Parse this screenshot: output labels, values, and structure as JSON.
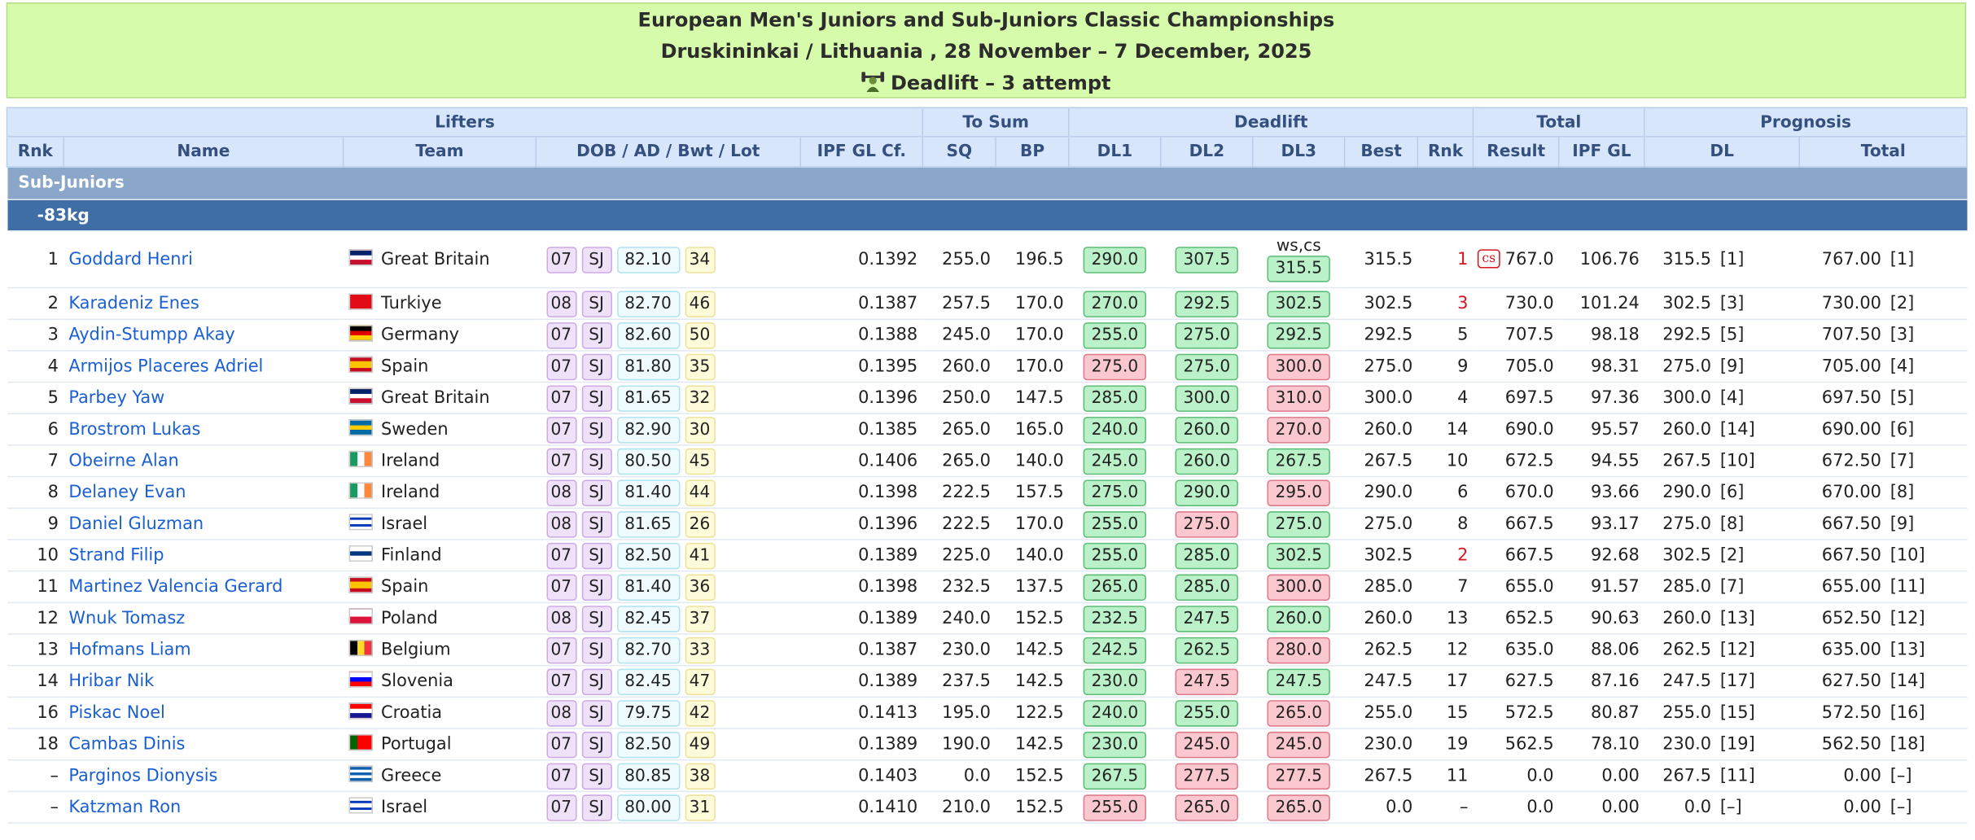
{
  "header": {
    "title": "European Men's Juniors and Sub-Juniors Classic Championships",
    "subtitle": "Druskininkai / Lithuania , 28 November – 7 December, 2025",
    "event": "Deadlift – 3 attempt"
  },
  "groups": [
    "Lifters",
    "To Sum",
    "Deadlift",
    "Total",
    "Prognosis"
  ],
  "columns": [
    "Rnk",
    "Name",
    "Team",
    "DOB / AD / Bwt / Lot",
    "IPF GL Cf.",
    "SQ",
    "BP",
    "DL1",
    "DL2",
    "DL3",
    "Best",
    "Rnk",
    "Result",
    "IPF GL",
    "DL",
    "Total"
  ],
  "section": "Sub-Juniors",
  "weight_class": "-83kg",
  "rows": [
    {
      "rank": "1",
      "name": "Goddard Henri",
      "team": "Great Britain",
      "dob": "07",
      "div": "SJ",
      "bwt": "82.10",
      "lot": "34",
      "coef": "0.1392",
      "sq": "255.0",
      "bp": "196.5",
      "dl": [
        {
          "v": "290.0",
          "ok": true
        },
        {
          "v": "307.5",
          "ok": true
        },
        {
          "v": "315.5",
          "ok": true
        }
      ],
      "dl3_note": "ws,cs",
      "best": "315.5",
      "dl_rank": "1",
      "top": true,
      "badge": "cs",
      "result": "767.0",
      "gl": "106.76",
      "p_dl": "315.5",
      "p_dl_rank": "[1]",
      "p_total": "767.00",
      "p_total_rank": "[1]"
    },
    {
      "rank": "2",
      "name": "Karadeniz Enes",
      "team": "Turkiye",
      "dob": "08",
      "div": "SJ",
      "bwt": "82.70",
      "lot": "46",
      "coef": "0.1387",
      "sq": "257.5",
      "bp": "170.0",
      "dl": [
        {
          "v": "270.0",
          "ok": true
        },
        {
          "v": "292.5",
          "ok": true
        },
        {
          "v": "302.5",
          "ok": true
        }
      ],
      "best": "302.5",
      "dl_rank": "3",
      "top": true,
      "result": "730.0",
      "gl": "101.24",
      "p_dl": "302.5",
      "p_dl_rank": "[3]",
      "p_total": "730.00",
      "p_total_rank": "[2]"
    },
    {
      "rank": "3",
      "name": "Aydin-Stumpp Akay",
      "team": "Germany",
      "dob": "07",
      "div": "SJ",
      "bwt": "82.60",
      "lot": "50",
      "coef": "0.1388",
      "sq": "245.0",
      "bp": "170.0",
      "dl": [
        {
          "v": "255.0",
          "ok": true
        },
        {
          "v": "275.0",
          "ok": true
        },
        {
          "v": "292.5",
          "ok": true
        }
      ],
      "best": "292.5",
      "dl_rank": "5",
      "result": "707.5",
      "gl": "98.18",
      "p_dl": "292.5",
      "p_dl_rank": "[5]",
      "p_total": "707.50",
      "p_total_rank": "[3]"
    },
    {
      "rank": "4",
      "name": "Armijos Placeres Adriel",
      "team": "Spain",
      "dob": "07",
      "div": "SJ",
      "bwt": "81.80",
      "lot": "35",
      "coef": "0.1395",
      "sq": "260.0",
      "bp": "170.0",
      "dl": [
        {
          "v": "275.0",
          "ok": false
        },
        {
          "v": "275.0",
          "ok": true
        },
        {
          "v": "300.0",
          "ok": false
        }
      ],
      "best": "275.0",
      "dl_rank": "9",
      "result": "705.0",
      "gl": "98.31",
      "p_dl": "275.0",
      "p_dl_rank": "[9]",
      "p_total": "705.00",
      "p_total_rank": "[4]"
    },
    {
      "rank": "5",
      "name": "Parbey Yaw",
      "team": "Great Britain",
      "dob": "07",
      "div": "SJ",
      "bwt": "81.65",
      "lot": "32",
      "coef": "0.1396",
      "sq": "250.0",
      "bp": "147.5",
      "dl": [
        {
          "v": "285.0",
          "ok": true
        },
        {
          "v": "300.0",
          "ok": true
        },
        {
          "v": "310.0",
          "ok": false
        }
      ],
      "best": "300.0",
      "dl_rank": "4",
      "result": "697.5",
      "gl": "97.36",
      "p_dl": "300.0",
      "p_dl_rank": "[4]",
      "p_total": "697.50",
      "p_total_rank": "[5]"
    },
    {
      "rank": "6",
      "name": "Brostrom Lukas",
      "team": "Sweden",
      "dob": "07",
      "div": "SJ",
      "bwt": "82.90",
      "lot": "30",
      "coef": "0.1385",
      "sq": "265.0",
      "bp": "165.0",
      "dl": [
        {
          "v": "240.0",
          "ok": true
        },
        {
          "v": "260.0",
          "ok": true
        },
        {
          "v": "270.0",
          "ok": false
        }
      ],
      "best": "260.0",
      "dl_rank": "14",
      "result": "690.0",
      "gl": "95.57",
      "p_dl": "260.0",
      "p_dl_rank": "[14]",
      "p_total": "690.00",
      "p_total_rank": "[6]"
    },
    {
      "rank": "7",
      "name": "Obeirne Alan",
      "team": "Ireland",
      "dob": "07",
      "div": "SJ",
      "bwt": "80.50",
      "lot": "45",
      "coef": "0.1406",
      "sq": "265.0",
      "bp": "140.0",
      "dl": [
        {
          "v": "245.0",
          "ok": true
        },
        {
          "v": "260.0",
          "ok": true
        },
        {
          "v": "267.5",
          "ok": true
        }
      ],
      "best": "267.5",
      "dl_rank": "10",
      "result": "672.5",
      "gl": "94.55",
      "p_dl": "267.5",
      "p_dl_rank": "[10]",
      "p_total": "672.50",
      "p_total_rank": "[7]"
    },
    {
      "rank": "8",
      "name": "Delaney Evan",
      "team": "Ireland",
      "dob": "08",
      "div": "SJ",
      "bwt": "81.40",
      "lot": "44",
      "coef": "0.1398",
      "sq": "222.5",
      "bp": "157.5",
      "dl": [
        {
          "v": "275.0",
          "ok": true
        },
        {
          "v": "290.0",
          "ok": true
        },
        {
          "v": "295.0",
          "ok": false
        }
      ],
      "best": "290.0",
      "dl_rank": "6",
      "result": "670.0",
      "gl": "93.66",
      "p_dl": "290.0",
      "p_dl_rank": "[6]",
      "p_total": "670.00",
      "p_total_rank": "[8]"
    },
    {
      "rank": "9",
      "name": "Daniel Gluzman",
      "team": "Israel",
      "dob": "08",
      "div": "SJ",
      "bwt": "81.65",
      "lot": "26",
      "coef": "0.1396",
      "sq": "222.5",
      "bp": "170.0",
      "dl": [
        {
          "v": "255.0",
          "ok": true
        },
        {
          "v": "275.0",
          "ok": false
        },
        {
          "v": "275.0",
          "ok": true
        }
      ],
      "best": "275.0",
      "dl_rank": "8",
      "result": "667.5",
      "gl": "93.17",
      "p_dl": "275.0",
      "p_dl_rank": "[8]",
      "p_total": "667.50",
      "p_total_rank": "[9]"
    },
    {
      "rank": "10",
      "name": "Strand Filip",
      "team": "Finland",
      "dob": "07",
      "div": "SJ",
      "bwt": "82.50",
      "lot": "41",
      "coef": "0.1389",
      "sq": "225.0",
      "bp": "140.0",
      "dl": [
        {
          "v": "255.0",
          "ok": true
        },
        {
          "v": "285.0",
          "ok": true
        },
        {
          "v": "302.5",
          "ok": true
        }
      ],
      "best": "302.5",
      "dl_rank": "2",
      "top": true,
      "result": "667.5",
      "gl": "92.68",
      "p_dl": "302.5",
      "p_dl_rank": "[2]",
      "p_total": "667.50",
      "p_total_rank": "[10]"
    },
    {
      "rank": "11",
      "name": "Martinez Valencia Gerard",
      "team": "Spain",
      "dob": "07",
      "div": "SJ",
      "bwt": "81.40",
      "lot": "36",
      "coef": "0.1398",
      "sq": "232.5",
      "bp": "137.5",
      "dl": [
        {
          "v": "265.0",
          "ok": true
        },
        {
          "v": "285.0",
          "ok": true
        },
        {
          "v": "300.0",
          "ok": false
        }
      ],
      "best": "285.0",
      "dl_rank": "7",
      "result": "655.0",
      "gl": "91.57",
      "p_dl": "285.0",
      "p_dl_rank": "[7]",
      "p_total": "655.00",
      "p_total_rank": "[11]"
    },
    {
      "rank": "12",
      "name": "Wnuk Tomasz",
      "team": "Poland",
      "dob": "08",
      "div": "SJ",
      "bwt": "82.45",
      "lot": "37",
      "coef": "0.1389",
      "sq": "240.0",
      "bp": "152.5",
      "dl": [
        {
          "v": "232.5",
          "ok": true
        },
        {
          "v": "247.5",
          "ok": true
        },
        {
          "v": "260.0",
          "ok": true
        }
      ],
      "best": "260.0",
      "dl_rank": "13",
      "result": "652.5",
      "gl": "90.63",
      "p_dl": "260.0",
      "p_dl_rank": "[13]",
      "p_total": "652.50",
      "p_total_rank": "[12]"
    },
    {
      "rank": "13",
      "name": "Hofmans Liam",
      "team": "Belgium",
      "dob": "07",
      "div": "SJ",
      "bwt": "82.70",
      "lot": "33",
      "coef": "0.1387",
      "sq": "230.0",
      "bp": "142.5",
      "dl": [
        {
          "v": "242.5",
          "ok": true
        },
        {
          "v": "262.5",
          "ok": true
        },
        {
          "v": "280.0",
          "ok": false
        }
      ],
      "best": "262.5",
      "dl_rank": "12",
      "result": "635.0",
      "gl": "88.06",
      "p_dl": "262.5",
      "p_dl_rank": "[12]",
      "p_total": "635.00",
      "p_total_rank": "[13]"
    },
    {
      "rank": "14",
      "name": "Hribar Nik",
      "team": "Slovenia",
      "dob": "07",
      "div": "SJ",
      "bwt": "82.45",
      "lot": "47",
      "coef": "0.1389",
      "sq": "237.5",
      "bp": "142.5",
      "dl": [
        {
          "v": "230.0",
          "ok": true
        },
        {
          "v": "247.5",
          "ok": false
        },
        {
          "v": "247.5",
          "ok": true
        }
      ],
      "best": "247.5",
      "dl_rank": "17",
      "result": "627.5",
      "gl": "87.16",
      "p_dl": "247.5",
      "p_dl_rank": "[17]",
      "p_total": "627.50",
      "p_total_rank": "[14]"
    },
    {
      "rank": "16",
      "name": "Piskac Noel",
      "team": "Croatia",
      "dob": "08",
      "div": "SJ",
      "bwt": "79.75",
      "lot": "42",
      "coef": "0.1413",
      "sq": "195.0",
      "bp": "122.5",
      "dl": [
        {
          "v": "240.0",
          "ok": true
        },
        {
          "v": "255.0",
          "ok": true
        },
        {
          "v": "265.0",
          "ok": false
        }
      ],
      "best": "255.0",
      "dl_rank": "15",
      "result": "572.5",
      "gl": "80.87",
      "p_dl": "255.0",
      "p_dl_rank": "[15]",
      "p_total": "572.50",
      "p_total_rank": "[16]"
    },
    {
      "rank": "18",
      "name": "Cambas Dinis",
      "team": "Portugal",
      "dob": "07",
      "div": "SJ",
      "bwt": "82.50",
      "lot": "49",
      "coef": "0.1389",
      "sq": "190.0",
      "bp": "142.5",
      "dl": [
        {
          "v": "230.0",
          "ok": true
        },
        {
          "v": "245.0",
          "ok": false
        },
        {
          "v": "245.0",
          "ok": false
        }
      ],
      "best": "230.0",
      "dl_rank": "19",
      "result": "562.5",
      "gl": "78.10",
      "p_dl": "230.0",
      "p_dl_rank": "[19]",
      "p_total": "562.50",
      "p_total_rank": "[18]"
    },
    {
      "rank": "–",
      "name": "Parginos Dionysis",
      "team": "Greece",
      "dob": "07",
      "div": "SJ",
      "bwt": "80.85",
      "lot": "38",
      "coef": "0.1403",
      "sq": "0.0",
      "bp": "152.5",
      "dl": [
        {
          "v": "267.5",
          "ok": true
        },
        {
          "v": "277.5",
          "ok": false
        },
        {
          "v": "277.5",
          "ok": false
        }
      ],
      "best": "267.5",
      "dl_rank": "11",
      "result": "0.0",
      "gl": "0.00",
      "p_dl": "267.5",
      "p_dl_rank": "[11]",
      "p_total": "0.00",
      "p_total_rank": "[–]"
    },
    {
      "rank": "–",
      "name": "Katzman Ron",
      "team": "Israel",
      "dob": "07",
      "div": "SJ",
      "bwt": "80.00",
      "lot": "31",
      "coef": "0.1410",
      "sq": "210.0",
      "bp": "152.5",
      "dl": [
        {
          "v": "255.0",
          "ok": false
        },
        {
          "v": "265.0",
          "ok": false
        },
        {
          "v": "265.0",
          "ok": false
        }
      ],
      "best": "0.0",
      "dl_rank": "–",
      "result": "0.0",
      "gl": "0.00",
      "p_dl": "0.0",
      "p_dl_rank": "[–]",
      "p_total": "0.00",
      "p_total_rank": "[–]"
    }
  ]
}
